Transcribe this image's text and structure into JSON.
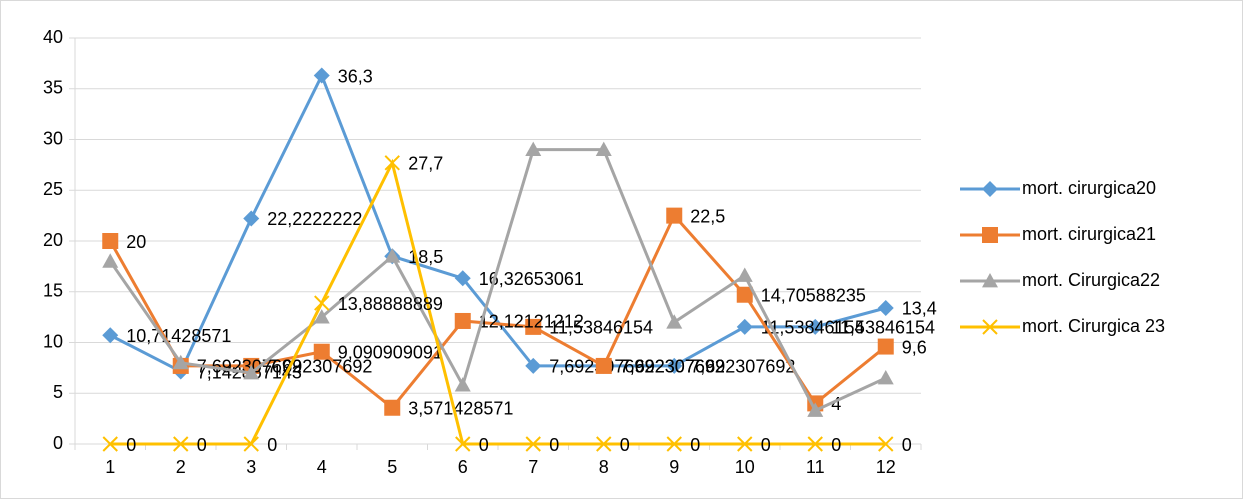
{
  "chart_data": {
    "type": "line",
    "categories": [
      "1",
      "2",
      "3",
      "4",
      "5",
      "6",
      "7",
      "8",
      "9",
      "10",
      "11",
      "12"
    ],
    "ylim": [
      0,
      40
    ],
    "yticks": [
      0,
      5,
      10,
      15,
      20,
      25,
      30,
      35,
      40
    ],
    "grid": true,
    "legend": "right",
    "series": [
      {
        "name": "mort. cirurgica20",
        "color": "#5b9bd5",
        "marker": "diamond",
        "values": [
          10.71428571,
          7.142857143,
          22.2222222,
          36.3,
          18.5,
          16.32653061,
          7.692307692,
          7.692307692,
          7.692307692,
          11.53846154,
          11.53846154,
          13.4
        ],
        "value_labels": [
          "10,71428571",
          "7,142857143",
          "22,2222222",
          "36,3",
          "18,5",
          "16,32653061",
          "7,692307692",
          "7,692307692",
          "7,692307692",
          "11,53846154",
          "11,53846154",
          "13,4"
        ]
      },
      {
        "name": "mort. cirurgica21",
        "color": "#ed7d31",
        "marker": "square",
        "values": [
          20,
          7.692307692,
          7.692307692,
          9.090909091,
          3.571428571,
          12.12121212,
          11.53846154,
          7.692307692,
          22.5,
          14.70588235,
          4,
          9.6
        ],
        "value_labels": [
          "20",
          "7,692307692",
          "7,692307692",
          "9,090909091",
          "3,571428571",
          "12,12121212",
          "11,53846154",
          "7,692307692",
          "22,5",
          "14,70588235",
          "4",
          "9,6"
        ]
      },
      {
        "name": "mort. Cirurgica22",
        "color": "#a5a5a5",
        "marker": "triangle",
        "values": [
          18,
          8,
          7,
          12.5,
          18.5,
          5.8,
          29,
          29,
          12,
          16.6,
          3.3,
          6.5
        ]
      },
      {
        "name": "mort. Cirurgica 23",
        "color": "#ffc000",
        "marker": "x",
        "values": [
          0,
          0,
          0,
          13.88888889,
          27.7,
          0,
          0,
          0,
          0,
          0,
          0,
          0
        ],
        "value_labels": [
          "0",
          "0",
          "0",
          "13,88888889",
          "27,7",
          "0",
          "0",
          "0",
          "0",
          "0",
          "0",
          "0"
        ]
      }
    ]
  }
}
